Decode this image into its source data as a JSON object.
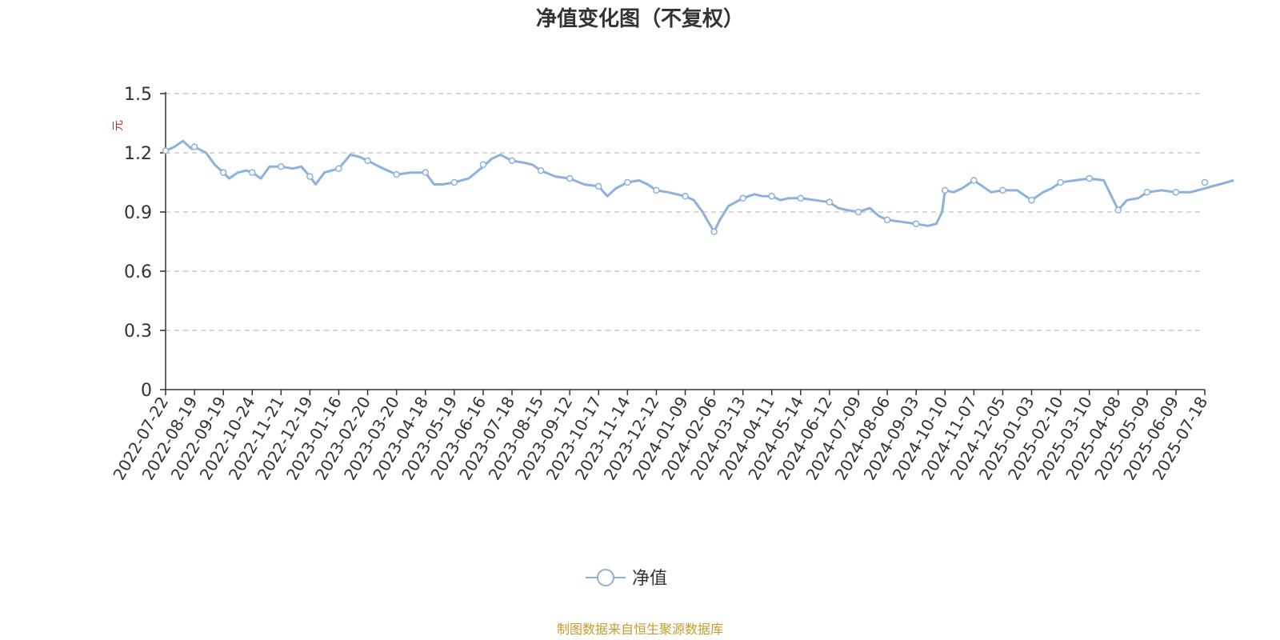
{
  "chart_data": {
    "type": "line",
    "title": "净值变化图（不复权）",
    "ylabel": "元",
    "ylim": [
      0,
      1.5
    ],
    "yticks": [
      "0",
      "0.3",
      "0.6",
      "0.9",
      "1.2",
      "1.5"
    ],
    "categories": [
      "2022-07-22",
      "2022-08-19",
      "2022-09-19",
      "2022-10-24",
      "2022-11-21",
      "2022-12-19",
      "2023-01-16",
      "2023-02-20",
      "2023-03-20",
      "2023-04-18",
      "2023-05-19",
      "2023-06-16",
      "2023-07-18",
      "2023-08-15",
      "2023-09-12",
      "2023-10-17",
      "2023-11-14",
      "2023-12-12",
      "2024-01-09",
      "2024-02-06",
      "2024-03-13",
      "2024-04-11",
      "2024-05-14",
      "2024-06-12",
      "2024-07-09",
      "2024-08-06",
      "2024-09-03",
      "2024-10-10",
      "2024-11-07",
      "2024-12-05",
      "2025-01-03",
      "2025-02-10",
      "2025-03-10",
      "2025-04-08",
      "2025-05-09",
      "2025-06-09",
      "2025-07-18"
    ],
    "grid": true,
    "legend_position": "bottom-center",
    "series": [
      {
        "name": "净值",
        "color": "#8eb1dc",
        "values": [
          1.21,
          1.23,
          1.1,
          1.1,
          1.13,
          1.08,
          1.12,
          1.16,
          1.09,
          1.1,
          1.05,
          1.14,
          1.16,
          1.11,
          1.07,
          1.03,
          1.05,
          1.01,
          0.98,
          0.8,
          0.97,
          0.98,
          0.97,
          0.95,
          0.9,
          0.86,
          0.84,
          1.01,
          1.06,
          1.01,
          0.96,
          1.05,
          1.07,
          0.91,
          1.0,
          1.0,
          1.05
        ],
        "path": [
          [
            0,
            1.21
          ],
          [
            0.3,
            1.23
          ],
          [
            0.6,
            1.26
          ],
          [
            0.9,
            1.22
          ],
          [
            1.0,
            1.23
          ],
          [
            1.4,
            1.2
          ],
          [
            1.7,
            1.14
          ],
          [
            2.0,
            1.1
          ],
          [
            2.2,
            1.07
          ],
          [
            2.5,
            1.1
          ],
          [
            2.8,
            1.11
          ],
          [
            3.0,
            1.1
          ],
          [
            3.3,
            1.07
          ],
          [
            3.6,
            1.13
          ],
          [
            4.0,
            1.13
          ],
          [
            4.4,
            1.12
          ],
          [
            4.7,
            1.13
          ],
          [
            5.0,
            1.08
          ],
          [
            5.2,
            1.04
          ],
          [
            5.5,
            1.1
          ],
          [
            6.0,
            1.12
          ],
          [
            6.4,
            1.19
          ],
          [
            6.7,
            1.18
          ],
          [
            7.0,
            1.16
          ],
          [
            7.4,
            1.13
          ],
          [
            7.7,
            1.11
          ],
          [
            8.0,
            1.09
          ],
          [
            8.5,
            1.1
          ],
          [
            9.0,
            1.1
          ],
          [
            9.3,
            1.04
          ],
          [
            9.6,
            1.04
          ],
          [
            10.0,
            1.05
          ],
          [
            10.5,
            1.07
          ],
          [
            11.0,
            1.13
          ],
          [
            11.3,
            1.17
          ],
          [
            11.6,
            1.19
          ],
          [
            12.0,
            1.16
          ],
          [
            12.4,
            1.15
          ],
          [
            12.7,
            1.14
          ],
          [
            13.0,
            1.11
          ],
          [
            13.5,
            1.08
          ],
          [
            14.0,
            1.07
          ],
          [
            14.5,
            1.04
          ],
          [
            15.0,
            1.03
          ],
          [
            15.3,
            0.98
          ],
          [
            15.6,
            1.02
          ],
          [
            16.0,
            1.05
          ],
          [
            16.4,
            1.06
          ],
          [
            16.7,
            1.04
          ],
          [
            17.0,
            1.01
          ],
          [
            17.4,
            1.0
          ],
          [
            17.7,
            0.99
          ],
          [
            18.0,
            0.98
          ],
          [
            18.3,
            0.96
          ],
          [
            18.6,
            0.9
          ],
          [
            19.0,
            0.8
          ],
          [
            19.2,
            0.86
          ],
          [
            19.5,
            0.93
          ],
          [
            20.0,
            0.97
          ],
          [
            20.4,
            0.99
          ],
          [
            20.7,
            0.98
          ],
          [
            21.0,
            0.98
          ],
          [
            21.3,
            0.96
          ],
          [
            21.6,
            0.97
          ],
          [
            22.0,
            0.97
          ],
          [
            22.5,
            0.96
          ],
          [
            23.0,
            0.95
          ],
          [
            23.3,
            0.92
          ],
          [
            23.6,
            0.91
          ],
          [
            24.0,
            0.9
          ],
          [
            24.4,
            0.92
          ],
          [
            24.7,
            0.88
          ],
          [
            25.0,
            0.86
          ],
          [
            25.5,
            0.85
          ],
          [
            26.0,
            0.84
          ],
          [
            26.4,
            0.83
          ],
          [
            26.7,
            0.84
          ],
          [
            26.9,
            0.9
          ],
          [
            27.0,
            1.01
          ],
          [
            27.3,
            1.0
          ],
          [
            27.6,
            1.02
          ],
          [
            28.0,
            1.06
          ],
          [
            28.3,
            1.03
          ],
          [
            28.6,
            1.0
          ],
          [
            29.0,
            1.01
          ],
          [
            29.5,
            1.01
          ],
          [
            30.0,
            0.96
          ],
          [
            30.4,
            1.0
          ],
          [
            30.7,
            1.02
          ],
          [
            31.0,
            1.05
          ],
          [
            31.5,
            1.06
          ],
          [
            32.0,
            1.07
          ],
          [
            32.5,
            1.06
          ],
          [
            33.0,
            0.91
          ],
          [
            33.3,
            0.96
          ],
          [
            33.7,
            0.97
          ],
          [
            34.0,
            1.0
          ],
          [
            34.5,
            1.01
          ],
          [
            35.0,
            1.0
          ],
          [
            35.5,
            1.0
          ],
          [
            36.0,
            1.02
          ],
          [
            36.5,
            1.04
          ],
          [
            37.0,
            1.06
          ]
        ]
      }
    ]
  },
  "source": {
    "text": "制图数据来自恒生聚源数据库",
    "color": "#c89a2c"
  },
  "colors": {
    "ylabel": "#e02020",
    "grid": "#cccccc",
    "axis": "#333333"
  }
}
